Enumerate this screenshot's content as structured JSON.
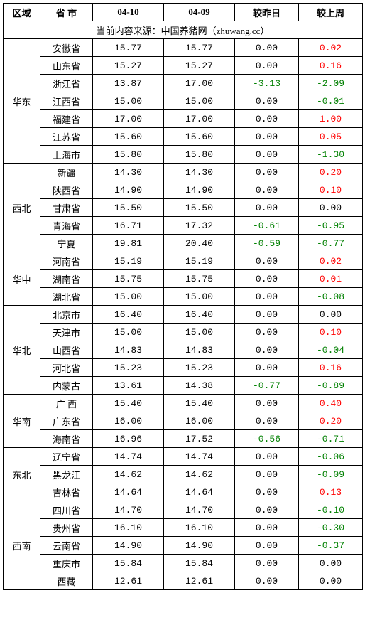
{
  "headers": {
    "region": "区域",
    "province": "省 市",
    "date1": "04-10",
    "date2": "04-09",
    "diff_day": "较昨日",
    "diff_week": "较上周"
  },
  "source_line": "当前内容来源：中国养猪网（zhuwang.cc）",
  "regions": [
    {
      "name": "华东",
      "rows": [
        {
          "prov": "安徽省",
          "d1": "15.77",
          "d2": "15.77",
          "dd": "0.00",
          "dw": "0.02",
          "dd_sign": "zero",
          "dw_sign": "pos"
        },
        {
          "prov": "山东省",
          "d1": "15.27",
          "d2": "15.27",
          "dd": "0.00",
          "dw": "0.16",
          "dd_sign": "zero",
          "dw_sign": "pos"
        },
        {
          "prov": "浙江省",
          "d1": "13.87",
          "d2": "17.00",
          "dd": "-3.13",
          "dw": "-2.09",
          "dd_sign": "neg",
          "dw_sign": "neg"
        },
        {
          "prov": "江西省",
          "d1": "15.00",
          "d2": "15.00",
          "dd": "0.00",
          "dw": "-0.01",
          "dd_sign": "zero",
          "dw_sign": "neg"
        },
        {
          "prov": "福建省",
          "d1": "17.00",
          "d2": "17.00",
          "dd": "0.00",
          "dw": "1.00",
          "dd_sign": "zero",
          "dw_sign": "pos"
        },
        {
          "prov": "江苏省",
          "d1": "15.60",
          "d2": "15.60",
          "dd": "0.00",
          "dw": "0.05",
          "dd_sign": "zero",
          "dw_sign": "pos"
        },
        {
          "prov": "上海市",
          "d1": "15.80",
          "d2": "15.80",
          "dd": "0.00",
          "dw": "-1.30",
          "dd_sign": "zero",
          "dw_sign": "neg"
        }
      ]
    },
    {
      "name": "西北",
      "rows": [
        {
          "prov": "新疆",
          "d1": "14.30",
          "d2": "14.30",
          "dd": "0.00",
          "dw": "0.20",
          "dd_sign": "zero",
          "dw_sign": "pos"
        },
        {
          "prov": "陕西省",
          "d1": "14.90",
          "d2": "14.90",
          "dd": "0.00",
          "dw": "0.10",
          "dd_sign": "zero",
          "dw_sign": "pos"
        },
        {
          "prov": "甘肃省",
          "d1": "15.50",
          "d2": "15.50",
          "dd": "0.00",
          "dw": "0.00",
          "dd_sign": "zero",
          "dw_sign": "zero"
        },
        {
          "prov": "青海省",
          "d1": "16.71",
          "d2": "17.32",
          "dd": "-0.61",
          "dw": "-0.95",
          "dd_sign": "neg",
          "dw_sign": "neg"
        },
        {
          "prov": "宁夏",
          "d1": "19.81",
          "d2": "20.40",
          "dd": "-0.59",
          "dw": "-0.77",
          "dd_sign": "neg",
          "dw_sign": "neg"
        }
      ]
    },
    {
      "name": "华中",
      "rows": [
        {
          "prov": "河南省",
          "d1": "15.19",
          "d2": "15.19",
          "dd": "0.00",
          "dw": "0.02",
          "dd_sign": "zero",
          "dw_sign": "pos"
        },
        {
          "prov": "湖南省",
          "d1": "15.75",
          "d2": "15.75",
          "dd": "0.00",
          "dw": "0.01",
          "dd_sign": "zero",
          "dw_sign": "pos"
        },
        {
          "prov": "湖北省",
          "d1": "15.00",
          "d2": "15.00",
          "dd": "0.00",
          "dw": "-0.08",
          "dd_sign": "zero",
          "dw_sign": "neg"
        }
      ]
    },
    {
      "name": "华北",
      "rows": [
        {
          "prov": "北京市",
          "d1": "16.40",
          "d2": "16.40",
          "dd": "0.00",
          "dw": "0.00",
          "dd_sign": "zero",
          "dw_sign": "zero"
        },
        {
          "prov": "天津市",
          "d1": "15.00",
          "d2": "15.00",
          "dd": "0.00",
          "dw": "0.10",
          "dd_sign": "zero",
          "dw_sign": "pos"
        },
        {
          "prov": "山西省",
          "d1": "14.83",
          "d2": "14.83",
          "dd": "0.00",
          "dw": "-0.04",
          "dd_sign": "zero",
          "dw_sign": "neg"
        },
        {
          "prov": "河北省",
          "d1": "15.23",
          "d2": "15.23",
          "dd": "0.00",
          "dw": "0.16",
          "dd_sign": "zero",
          "dw_sign": "pos"
        },
        {
          "prov": "内蒙古",
          "d1": "13.61",
          "d2": "14.38",
          "dd": "-0.77",
          "dw": "-0.89",
          "dd_sign": "neg",
          "dw_sign": "neg"
        }
      ]
    },
    {
      "name": "华南",
      "rows": [
        {
          "prov": "广 西",
          "d1": "15.40",
          "d2": "15.40",
          "dd": "0.00",
          "dw": "0.40",
          "dd_sign": "zero",
          "dw_sign": "pos"
        },
        {
          "prov": "广东省",
          "d1": "16.00",
          "d2": "16.00",
          "dd": "0.00",
          "dw": "0.20",
          "dd_sign": "zero",
          "dw_sign": "pos"
        },
        {
          "prov": "海南省",
          "d1": "16.96",
          "d2": "17.52",
          "dd": "-0.56",
          "dw": "-0.71",
          "dd_sign": "neg",
          "dw_sign": "neg"
        }
      ]
    },
    {
      "name": "东北",
      "rows": [
        {
          "prov": "辽宁省",
          "d1": "14.74",
          "d2": "14.74",
          "dd": "0.00",
          "dw": "-0.06",
          "dd_sign": "zero",
          "dw_sign": "neg"
        },
        {
          "prov": "黑龙江",
          "d1": "14.62",
          "d2": "14.62",
          "dd": "0.00",
          "dw": "-0.09",
          "dd_sign": "zero",
          "dw_sign": "neg"
        },
        {
          "prov": "吉林省",
          "d1": "14.64",
          "d2": "14.64",
          "dd": "0.00",
          "dw": "0.13",
          "dd_sign": "zero",
          "dw_sign": "pos"
        }
      ]
    },
    {
      "name": "西南",
      "rows": [
        {
          "prov": "四川省",
          "d1": "14.70",
          "d2": "14.70",
          "dd": "0.00",
          "dw": "-0.10",
          "dd_sign": "zero",
          "dw_sign": "neg"
        },
        {
          "prov": "贵州省",
          "d1": "16.10",
          "d2": "16.10",
          "dd": "0.00",
          "dw": "-0.30",
          "dd_sign": "zero",
          "dw_sign": "neg"
        },
        {
          "prov": "云南省",
          "d1": "14.90",
          "d2": "14.90",
          "dd": "0.00",
          "dw": "-0.37",
          "dd_sign": "zero",
          "dw_sign": "neg"
        },
        {
          "prov": "重庆市",
          "d1": "15.84",
          "d2": "15.84",
          "dd": "0.00",
          "dw": "0.00",
          "dd_sign": "zero",
          "dw_sign": "zero"
        },
        {
          "prov": "西藏",
          "d1": "12.61",
          "d2": "12.61",
          "dd": "0.00",
          "dw": "0.00",
          "dd_sign": "zero",
          "dw_sign": "zero"
        }
      ]
    }
  ],
  "colors": {
    "pos": "#ff0000",
    "neg": "#008000",
    "zero": "#000000",
    "border": "#000000",
    "bg": "#ffffff"
  }
}
